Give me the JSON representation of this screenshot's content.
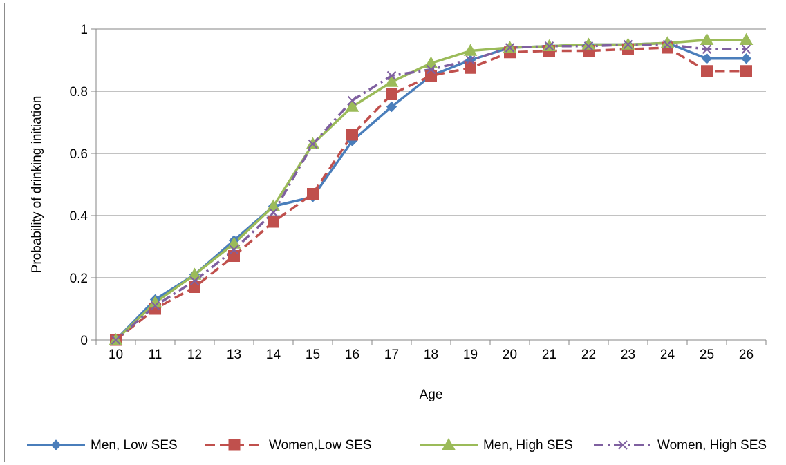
{
  "chart_data": {
    "type": "line",
    "title": "",
    "xlabel": "Age",
    "ylabel": "Probability of drinking initiation",
    "x": [
      10,
      11,
      12,
      13,
      14,
      15,
      16,
      17,
      18,
      19,
      20,
      21,
      22,
      23,
      24,
      25,
      26
    ],
    "ylim": [
      0,
      1
    ],
    "yticks": [
      "0",
      "0.2",
      "0.4",
      "0.6",
      "0.8",
      "1"
    ],
    "grid": "horizontal",
    "legend_position": "bottom",
    "series": [
      {
        "name": "Men, Low SES",
        "color": "#4a7ebb",
        "dash": "solid",
        "marker": "diamond",
        "values": [
          0,
          0.13,
          0.21,
          0.32,
          0.43,
          0.46,
          0.64,
          0.75,
          0.85,
          0.9,
          0.94,
          0.945,
          0.95,
          0.95,
          0.955,
          0.905,
          0.905
        ]
      },
      {
        "name": "Women,Low SES",
        "color": "#c0504d",
        "dash": "dashed",
        "marker": "square",
        "values": [
          0,
          0.1,
          0.17,
          0.27,
          0.38,
          0.47,
          0.66,
          0.79,
          0.85,
          0.875,
          0.925,
          0.93,
          0.93,
          0.935,
          0.94,
          0.865,
          0.865
        ]
      },
      {
        "name": "Men, High SES",
        "color": "#9bbb59",
        "dash": "solid",
        "marker": "triangle",
        "values": [
          0,
          0.12,
          0.21,
          0.31,
          0.43,
          0.63,
          0.75,
          0.83,
          0.89,
          0.93,
          0.94,
          0.945,
          0.95,
          0.95,
          0.955,
          0.965,
          0.965
        ]
      },
      {
        "name": "Women, High SES",
        "color": "#7f60a0",
        "dash": "dashdot",
        "marker": "x",
        "values": [
          0,
          0.11,
          0.19,
          0.29,
          0.41,
          0.63,
          0.77,
          0.85,
          0.87,
          0.9,
          0.94,
          0.945,
          0.945,
          0.95,
          0.95,
          0.935,
          0.935
        ]
      }
    ]
  }
}
